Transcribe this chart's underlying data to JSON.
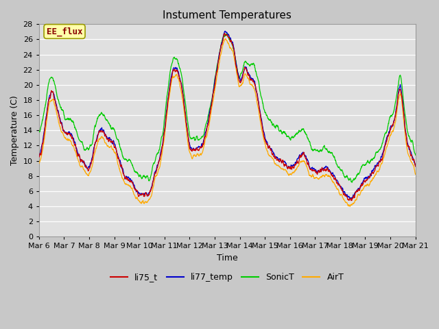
{
  "title": "Instument Temperatures",
  "xlabel": "Time",
  "ylabel": "Temperature (C)",
  "ylim": [
    0,
    28
  ],
  "yticks": [
    0,
    2,
    4,
    6,
    8,
    10,
    12,
    14,
    16,
    18,
    20,
    22,
    24,
    26,
    28
  ],
  "x_labels": [
    "Mar 6",
    "Mar 7",
    "Mar 8",
    "Mar 9",
    "Mar 10",
    "Mar 11",
    "Mar 12",
    "Mar 13",
    "Mar 14",
    "Mar 15",
    "Mar 16",
    "Mar 17",
    "Mar 18",
    "Mar 19",
    "Mar 20",
    "Mar 21"
  ],
  "colors": {
    "li75_t": "#cc0000",
    "li77_temp": "#0000cc",
    "SonicT": "#00cc00",
    "AirT": "#ffaa00"
  },
  "annotation_text": "EE_flux",
  "annotation_color": "#880000",
  "annotation_bg": "#ffffaa",
  "annotation_border": "#999900",
  "grid_color": "#d0d0d0",
  "fig_bg": "#c8c8c8",
  "ax_bg": "#e0e0e0",
  "title_fontsize": 11,
  "tick_fontsize": 8,
  "label_fontsize": 9
}
